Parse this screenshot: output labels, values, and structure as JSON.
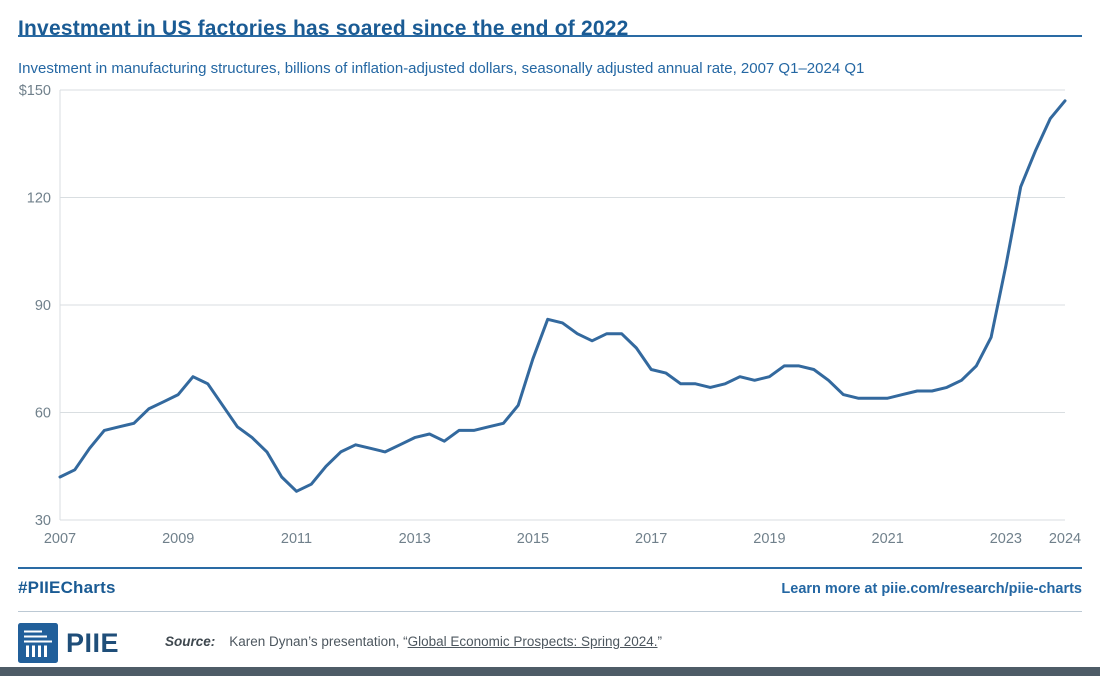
{
  "footer": {
    "hashtag": "#PIIECharts",
    "learn_more": "Learn more at piie.com/research/piie-charts",
    "logo_text": "PIIE",
    "source_label": "Source:",
    "source_prefix": "Karen Dynan’s presentation, “",
    "source_link": "Global Economic Prospects: Spring 2024.",
    "source_suffix": "”"
  },
  "colors": {
    "brand_blue": "#1a5b94",
    "subtitle_blue": "#2467a3",
    "accent_rule": "#2a6ba4",
    "line": "#33699e",
    "grid": "#d9dee1",
    "tick_text": "#70808b",
    "source_text": "#4d575f",
    "source_label": "#3f484f",
    "logo_navy": "#1f4e79",
    "divider_light": "#bcc9d4",
    "bottom_bar": "#4e5c67"
  },
  "chart_data": {
    "type": "line",
    "title": "Investment in US factories has soared since the end of 2022",
    "subtitle": "Investment in manufacturing structures, billions of inflation-adjusted dollars, seasonally adjusted annual rate, 2007 Q1–2024 Q1",
    "x_start": 2007.0,
    "x_step": 0.25,
    "xlim": [
      2007,
      2024
    ],
    "ylim": [
      30,
      150
    ],
    "grid": "horizontal",
    "legend": "none",
    "series_name": "Investment in manufacturing structures (billions of inflation-adjusted dollars, SAAR)",
    "x_ticks": [
      2007,
      2009,
      2011,
      2013,
      2015,
      2017,
      2019,
      2021,
      2023,
      2024
    ],
    "y_ticks": [
      {
        "value": 150,
        "label": "$150"
      },
      {
        "value": 120,
        "label": "120"
      },
      {
        "value": 90,
        "label": "90"
      },
      {
        "value": 60,
        "label": "60"
      },
      {
        "value": 30,
        "label": "30"
      }
    ],
    "values": [
      42,
      44,
      50,
      55,
      56,
      57,
      61,
      63,
      65,
      70,
      68,
      62,
      56,
      53,
      49,
      42,
      38,
      40,
      45,
      49,
      51,
      50,
      49,
      51,
      53,
      54,
      52,
      55,
      55,
      56,
      57,
      62,
      75,
      86,
      85,
      82,
      80,
      82,
      82,
      78,
      72,
      71,
      68,
      68,
      67,
      68,
      70,
      69,
      70,
      73,
      73,
      72,
      69,
      65,
      64,
      64,
      64,
      65,
      66,
      66,
      67,
      69,
      73,
      81,
      101,
      123,
      133,
      142,
      147
    ]
  }
}
